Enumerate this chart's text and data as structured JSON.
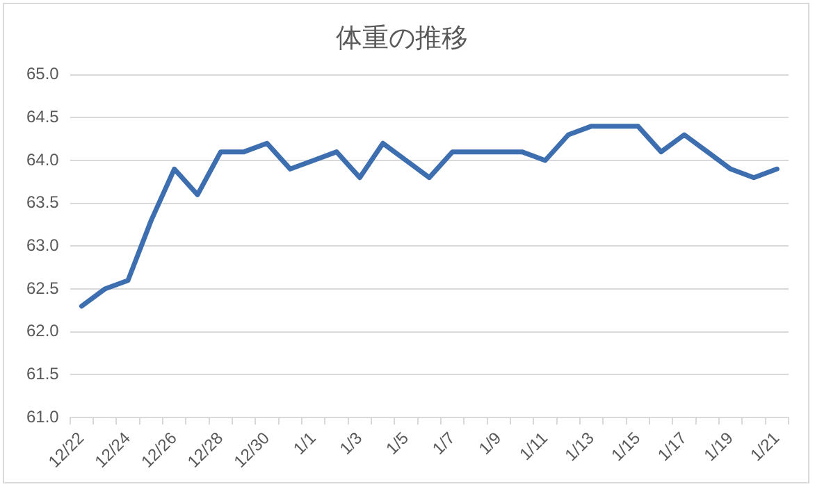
{
  "chart_data": {
    "type": "line",
    "title": "体重の推移",
    "categories": [
      "12/22",
      null,
      "12/24",
      null,
      "12/26",
      null,
      "12/28",
      null,
      "12/30",
      null,
      "1/1",
      null,
      "1/3",
      null,
      "1/5",
      null,
      "1/7",
      null,
      "1/9",
      null,
      "1/11",
      null,
      "1/13",
      null,
      "1/15",
      null,
      "1/17",
      null,
      "1/19",
      null,
      "1/21"
    ],
    "series": [
      {
        "color": "#3d6fb0",
        "values": [
          62.3,
          62.5,
          62.6,
          63.3,
          63.9,
          63.6,
          64.1,
          64.1,
          64.2,
          63.9,
          64.0,
          64.1,
          63.8,
          64.2,
          64.0,
          63.8,
          64.1,
          64.1,
          64.1,
          64.1,
          64.0,
          64.3,
          64.4,
          64.4,
          64.4,
          64.1,
          64.3,
          64.1,
          63.9,
          63.8,
          63.9
        ]
      }
    ],
    "ylim": [
      61.0,
      65.0
    ],
    "yticks": [
      {
        "value": 61,
        "label": "61.0"
      },
      {
        "value": 61.5,
        "label": "61.5"
      },
      {
        "value": 62,
        "label": "62.0"
      },
      {
        "value": 62.5,
        "label": "62.5"
      },
      {
        "value": 63,
        "label": "63.0"
      },
      {
        "value": 63.5,
        "label": "63.5"
      },
      {
        "value": 64,
        "label": "64.0"
      },
      {
        "value": 64.5,
        "label": "64.5"
      },
      {
        "value": 65,
        "label": "65.0"
      }
    ],
    "grid": "y",
    "legend": false,
    "marker": "none",
    "line_style": "solid"
  }
}
